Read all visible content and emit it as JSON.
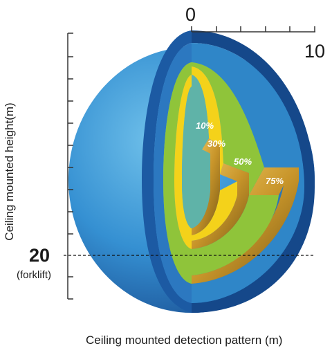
{
  "diagram": {
    "y_axis_label": "Ceiling mounted height(m)",
    "x_axis_label": "Ceiling mounted detection pattern (m)",
    "top_origin_label": "0",
    "top_end_label": "10",
    "depth_mark_label": "20",
    "depth_mark_note": "(forklift)",
    "zones": [
      {
        "label": "10%",
        "color": "#5fb3a8"
      },
      {
        "label": "30%",
        "color": "#f4d21a"
      },
      {
        "label": "50%",
        "color": "#8fc43a"
      },
      {
        "label": "75%",
        "color": "#2f86c8"
      }
    ],
    "colors": {
      "sphere_outer": "#1f5fa6",
      "sphere_light": "#52a8dc",
      "gold_edge": "#c8952a",
      "axis": "#333333"
    }
  }
}
